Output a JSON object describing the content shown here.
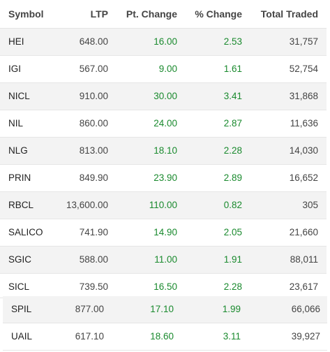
{
  "columns": {
    "symbol": "Symbol",
    "ltp": "LTP",
    "pt_change": "Pt. Change",
    "pct_change": "% Change",
    "total_traded": "Total Traded"
  },
  "rows": [
    {
      "symbol": "HEI",
      "ltp": "648.00",
      "pt_change": "16.00",
      "pct_change": "2.53",
      "total_traded": "31,757"
    },
    {
      "symbol": "IGI",
      "ltp": "567.00",
      "pt_change": "9.00",
      "pct_change": "1.61",
      "total_traded": "52,754"
    },
    {
      "symbol": "NICL",
      "ltp": "910.00",
      "pt_change": "30.00",
      "pct_change": "3.41",
      "total_traded": "31,868"
    },
    {
      "symbol": "NIL",
      "ltp": "860.00",
      "pt_change": "24.00",
      "pct_change": "2.87",
      "total_traded": "11,636"
    },
    {
      "symbol": "NLG",
      "ltp": "813.00",
      "pt_change": "18.10",
      "pct_change": "2.28",
      "total_traded": "14,030"
    },
    {
      "symbol": "PRIN",
      "ltp": "849.90",
      "pt_change": "23.90",
      "pct_change": "2.89",
      "total_traded": "16,652"
    },
    {
      "symbol": "RBCL",
      "ltp": "13,600.00",
      "pt_change": "110.00",
      "pct_change": "0.82",
      "total_traded": "305"
    },
    {
      "symbol": "SALICO",
      "ltp": "741.90",
      "pt_change": "14.90",
      "pct_change": "2.05",
      "total_traded": "21,660"
    },
    {
      "symbol": "SGIC",
      "ltp": "588.00",
      "pt_change": "11.00",
      "pct_change": "1.91",
      "total_traded": "88,011"
    },
    {
      "symbol": "SICL",
      "ltp": "739.50",
      "pt_change": "16.50",
      "pct_change": "2.28",
      "total_traded": "23,617"
    },
    {
      "symbol": "SPIL",
      "ltp": "877.00",
      "pt_change": "17.10",
      "pct_change": "1.99",
      "total_traded": "66,066"
    },
    {
      "symbol": "UAIL",
      "ltp": "617.10",
      "pt_change": "18.60",
      "pct_change": "3.11",
      "total_traded": "39,927"
    }
  ],
  "colors": {
    "positive": "#1a8a2e",
    "row_alt_bg": "#f3f3f3",
    "border": "#e6e6e6"
  }
}
